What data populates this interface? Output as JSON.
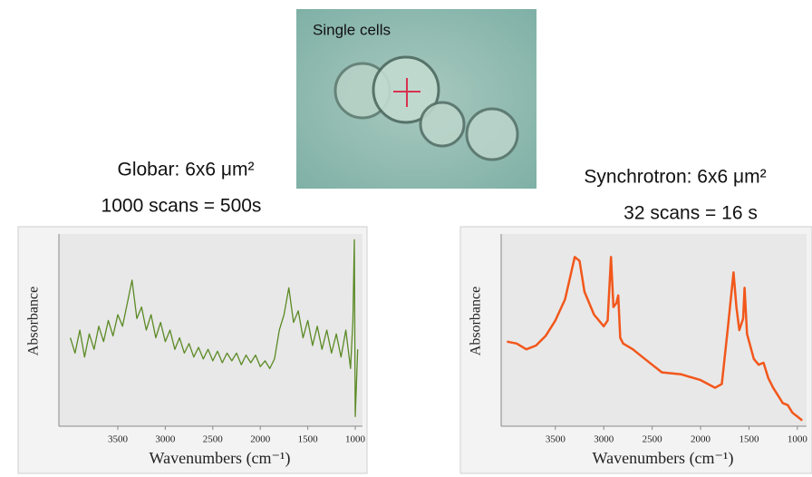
{
  "image": {
    "label": "Single cells"
  },
  "chart_data": [
    {
      "type": "line",
      "title": "Globar: 6x6 μm²",
      "subtitle": "1000 scans = 500s",
      "xlabel": "Wavenumbers (cm⁻¹)",
      "ylabel": "Absorbance",
      "color": "#5b8a25",
      "xlim": [
        4120,
        924
      ],
      "ylim": [
        0,
        1
      ],
      "xticks": [
        3500,
        3000,
        2500,
        2000,
        1500,
        1000
      ],
      "x": [
        4000,
        3950,
        3900,
        3850,
        3800,
        3750,
        3700,
        3650,
        3600,
        3550,
        3500,
        3450,
        3400,
        3350,
        3300,
        3250,
        3200,
        3150,
        3100,
        3050,
        3000,
        2950,
        2900,
        2850,
        2800,
        2750,
        2700,
        2650,
        2600,
        2550,
        2500,
        2450,
        2400,
        2350,
        2300,
        2250,
        2200,
        2150,
        2100,
        2050,
        2000,
        1950,
        1900,
        1850,
        1800,
        1750,
        1700,
        1650,
        1600,
        1550,
        1500,
        1450,
        1400,
        1350,
        1300,
        1250,
        1200,
        1150,
        1100,
        1050,
        1025,
        1010,
        1000,
        975
      ],
      "values": [
        0.46,
        0.38,
        0.5,
        0.36,
        0.48,
        0.4,
        0.52,
        0.44,
        0.55,
        0.47,
        0.58,
        0.52,
        0.64,
        0.76,
        0.56,
        0.62,
        0.5,
        0.58,
        0.46,
        0.54,
        0.44,
        0.5,
        0.4,
        0.46,
        0.38,
        0.43,
        0.36,
        0.41,
        0.35,
        0.4,
        0.34,
        0.39,
        0.33,
        0.38,
        0.34,
        0.38,
        0.32,
        0.37,
        0.33,
        0.37,
        0.31,
        0.34,
        0.3,
        0.35,
        0.5,
        0.58,
        0.72,
        0.54,
        0.6,
        0.46,
        0.55,
        0.42,
        0.52,
        0.4,
        0.5,
        0.38,
        0.48,
        0.36,
        0.5,
        0.3,
        0.55,
        0.97,
        0.05,
        0.4
      ]
    },
    {
      "type": "line",
      "title": "Synchrotron: 6x6 μm²",
      "subtitle": "32 scans = 16 s",
      "xlabel": "Wavenumbers (cm⁻¹)",
      "ylabel": "Absorbance",
      "color": "#f2571b",
      "xlim": [
        4060,
        905
      ],
      "ylim": [
        0,
        1
      ],
      "xticks": [
        3500,
        3000,
        2500,
        2000,
        1500,
        1000
      ],
      "x": [
        4000,
        3900,
        3800,
        3700,
        3600,
        3500,
        3400,
        3300,
        3250,
        3200,
        3100,
        3000,
        2960,
        2925,
        2900,
        2870,
        2850,
        2830,
        2800,
        2700,
        2600,
        2500,
        2450,
        2400,
        2200,
        2000,
        1850,
        1780,
        1720,
        1660,
        1630,
        1600,
        1560,
        1545,
        1520,
        1450,
        1400,
        1350,
        1300,
        1250,
        1200,
        1150,
        1100,
        1050,
        1000,
        950
      ],
      "values": [
        0.44,
        0.43,
        0.4,
        0.42,
        0.47,
        0.55,
        0.66,
        0.88,
        0.86,
        0.7,
        0.58,
        0.52,
        0.55,
        0.88,
        0.62,
        0.64,
        0.68,
        0.46,
        0.43,
        0.4,
        0.36,
        0.32,
        0.3,
        0.28,
        0.27,
        0.24,
        0.2,
        0.22,
        0.5,
        0.8,
        0.62,
        0.5,
        0.56,
        0.72,
        0.48,
        0.35,
        0.32,
        0.33,
        0.25,
        0.2,
        0.16,
        0.12,
        0.11,
        0.07,
        0.05,
        0.03
      ]
    }
  ]
}
